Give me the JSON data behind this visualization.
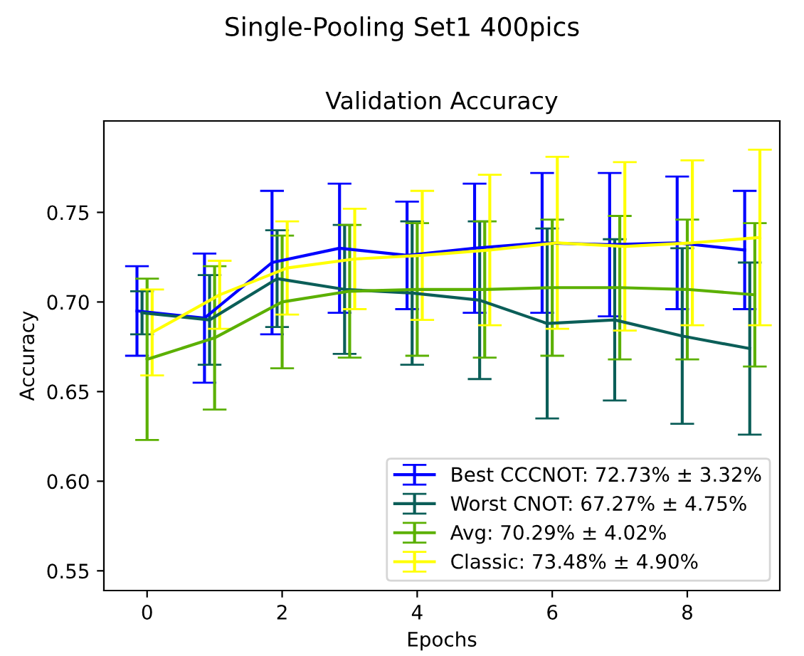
{
  "chart_data": {
    "type": "line",
    "title": "Single-Pooling Set1 400pics",
    "subtitle": "Validation Accuracy",
    "xlabel": "Epochs",
    "ylabel": "Accuracy",
    "series": [
      {
        "name": "Best CCCNOT: 72.73% ± 3.32%",
        "color": "#0000ff",
        "x": [
          -0.15,
          0.85,
          1.85,
          2.85,
          3.85,
          4.85,
          5.85,
          6.85,
          7.85,
          8.85
        ],
        "values": [
          0.695,
          0.691,
          0.722,
          0.73,
          0.726,
          0.73,
          0.733,
          0.732,
          0.733,
          0.729
        ],
        "errors": [
          0.025,
          0.036,
          0.04,
          0.036,
          0.03,
          0.036,
          0.039,
          0.04,
          0.037,
          0.033
        ]
      },
      {
        "name": "Worst CNOT: 67.27% ± 4.75%",
        "color": "#0b5e58",
        "x": [
          -0.075,
          0.925,
          1.925,
          2.925,
          3.925,
          4.925,
          5.925,
          6.925,
          7.925,
          8.925
        ],
        "values": [
          0.694,
          0.69,
          0.713,
          0.707,
          0.705,
          0.701,
          0.688,
          0.69,
          0.681,
          0.674
        ],
        "errors": [
          0.012,
          0.025,
          0.027,
          0.036,
          0.04,
          0.044,
          0.053,
          0.045,
          0.049,
          0.048
        ]
      },
      {
        "name": "Avg: 70.29% ± 4.02%",
        "color": "#5bb000",
        "x": [
          0,
          1,
          2,
          3,
          4,
          5,
          6,
          7,
          8,
          9
        ],
        "values": [
          0.668,
          0.68,
          0.7,
          0.706,
          0.707,
          0.707,
          0.708,
          0.708,
          0.707,
          0.704
        ],
        "errors": [
          0.045,
          0.04,
          0.037,
          0.037,
          0.037,
          0.038,
          0.038,
          0.04,
          0.039,
          0.04
        ]
      },
      {
        "name": "Classic: 73.48% ± 4.90%",
        "color": "#ffff00",
        "x": [
          0.075,
          1.075,
          2.075,
          3.075,
          4.075,
          5.075,
          6.075,
          7.075,
          8.075,
          9.075
        ],
        "values": [
          0.683,
          0.704,
          0.719,
          0.724,
          0.726,
          0.729,
          0.733,
          0.731,
          0.733,
          0.736
        ],
        "errors": [
          0.024,
          0.019,
          0.026,
          0.028,
          0.036,
          0.042,
          0.048,
          0.047,
          0.046,
          0.049
        ]
      }
    ],
    "xlim": [
      -0.64,
      9.37
    ],
    "xticks": [
      0,
      2,
      4,
      6,
      8
    ],
    "ylim": [
      0.539,
      0.801
    ],
    "yticks": [
      0.55,
      {
        "value": 0.6,
        "label": "0.60"
      },
      0.65,
      {
        "value": 0.7,
        "label": "0.70"
      },
      0.75
    ],
    "legend": "bottom right",
    "grid": false,
    "marker": "none",
    "line_style": "solid"
  }
}
